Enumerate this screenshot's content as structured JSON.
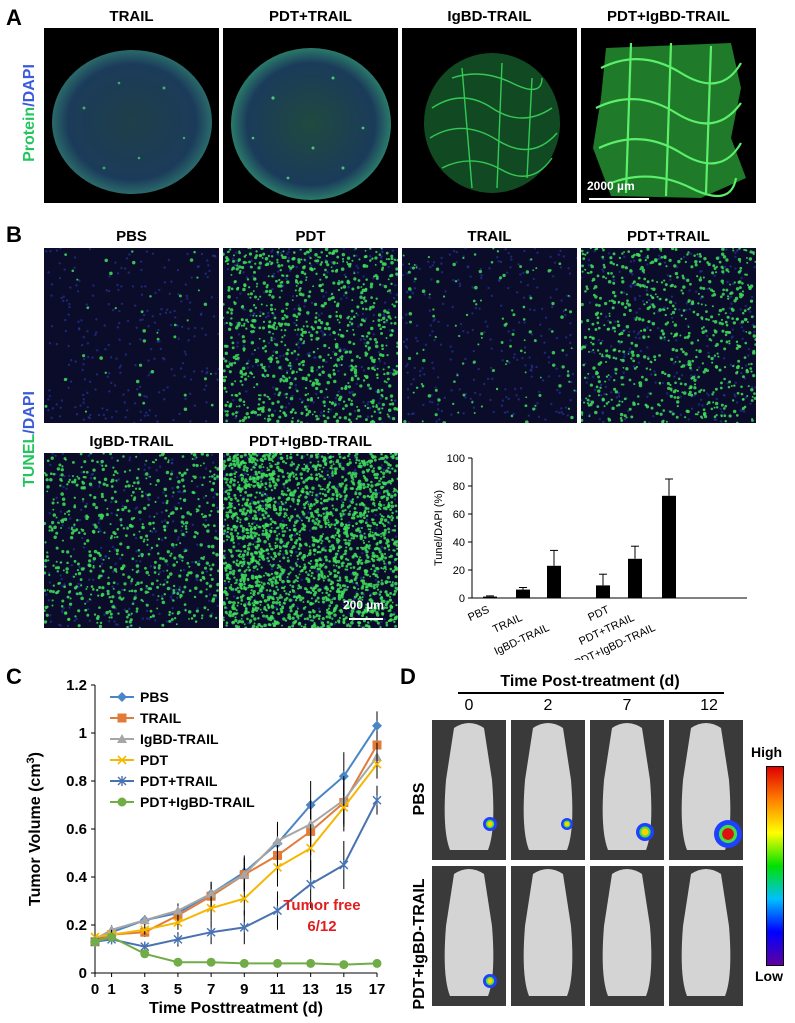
{
  "panel_a": {
    "label": "A",
    "stain": {
      "primary": "Protein",
      "separator": "/",
      "secondary": "DAPI"
    },
    "titles": [
      "TRAIL",
      "PDT+TRAIL",
      "IgBD-TRAIL",
      "PDT+IgBD-TRAIL"
    ],
    "scale_bar": "2000 µm"
  },
  "panel_b": {
    "label": "B",
    "stain": {
      "primary": "TUNEL",
      "separator": "/",
      "secondary": "DAPI"
    },
    "titles_row1": [
      "PBS",
      "PDT",
      "TRAIL",
      "PDT+TRAIL"
    ],
    "titles_row2": [
      "IgBD-TRAIL",
      "PDT+IgBD-TRAIL"
    ],
    "scale_bar": "200 µm"
  },
  "panel_c": {
    "label": "C",
    "annotation_line1": "Tumor free",
    "annotation_line2": "6/12"
  },
  "panel_d": {
    "label": "D",
    "header": "Time Post-treatment (d)",
    "time_points": [
      "0",
      "2",
      "7",
      "12"
    ],
    "row_labels": [
      "PBS",
      "PDT+IgBD-TRAIL"
    ],
    "colorbar_high": "High",
    "colorbar_low": "Low"
  },
  "colors": {
    "green": "#22c55e",
    "blue": "#3b5bdb",
    "red": "#e11d1d"
  },
  "chart_data": [
    {
      "type": "bar",
      "ylabel": "Tunel/DAPI (%)",
      "xlabel": "",
      "ylim": [
        0,
        100
      ],
      "yticks": [
        0,
        20,
        40,
        60,
        80,
        100
      ],
      "categories": [
        "PBS",
        "TRAIL",
        "IgBD-TRAIL",
        "PDT",
        "PDT+TRAIL",
        "PDT+IgBD-TRAIL"
      ],
      "values": [
        1,
        6,
        23,
        9,
        28,
        73
      ],
      "errors": [
        0.5,
        1.5,
        11,
        8,
        9,
        12
      ]
    },
    {
      "type": "line",
      "xlabel": "Time Posttreatment (d)",
      "ylabel_main": "Tumor Volume (cm",
      "ylabel_sup": "3",
      "ylabel_end": ")",
      "ylim": [
        0,
        1.2
      ],
      "yticks": [
        "0",
        "0.2",
        "0.4",
        "0.6",
        "0.8",
        "1",
        "1.2"
      ],
      "x": [
        0,
        1,
        3,
        5,
        7,
        9,
        11,
        13,
        15,
        17
      ],
      "legend_position": "top-left",
      "series": [
        {
          "name": "PBS",
          "color": "#4a86c5",
          "marker": "diamond",
          "values": [
            0.13,
            0.17,
            0.22,
            0.25,
            0.33,
            0.42,
            0.54,
            0.7,
            0.82,
            1.03
          ]
        },
        {
          "name": "TRAIL",
          "color": "#e07b39",
          "marker": "square",
          "values": [
            0.13,
            0.16,
            0.17,
            0.24,
            0.32,
            0.41,
            0.49,
            0.59,
            0.71,
            0.95
          ]
        },
        {
          "name": "IgBD-TRAIL",
          "color": "#a6a6a6",
          "marker": "triangle",
          "values": [
            0.14,
            0.18,
            0.22,
            0.26,
            0.33,
            0.41,
            0.55,
            0.62,
            0.72,
            0.9
          ]
        },
        {
          "name": "PDT",
          "color": "#f5b700",
          "marker": "cross",
          "values": [
            0.15,
            0.16,
            0.18,
            0.21,
            0.27,
            0.31,
            0.44,
            0.52,
            0.69,
            0.87
          ]
        },
        {
          "name": "PDT+TRAIL",
          "color": "#4a72b0",
          "marker": "asterisk",
          "values": [
            0.13,
            0.14,
            0.11,
            0.14,
            0.17,
            0.19,
            0.26,
            0.37,
            0.45,
            0.72
          ]
        },
        {
          "name": "PDT+IgBD-TRAIL",
          "color": "#70ad47",
          "marker": "circle",
          "values": [
            0.13,
            0.15,
            0.08,
            0.045,
            0.045,
            0.04,
            0.04,
            0.04,
            0.035,
            0.04
          ]
        }
      ]
    }
  ]
}
